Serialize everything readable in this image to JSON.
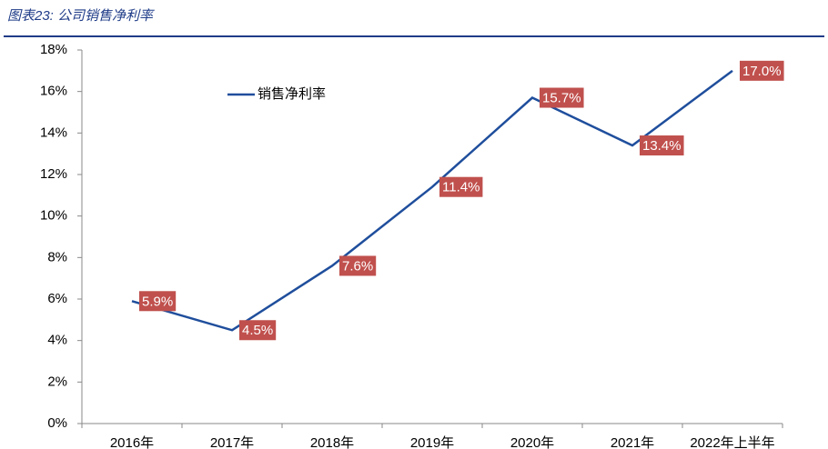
{
  "chart_data": {
    "type": "line",
    "title": "图表23: 公司销售净利率",
    "categories": [
      "2016年",
      "2017年",
      "2018年",
      "2019年",
      "2020年",
      "2021年",
      "2022年上半年"
    ],
    "series": [
      {
        "name": "销售净利率",
        "color": "#1f4e9c",
        "values": [
          5.9,
          4.5,
          7.6,
          11.4,
          15.7,
          13.4,
          17.0
        ],
        "value_labels": [
          "5.9%",
          "4.5%",
          "7.6%",
          "11.4%",
          "15.7%",
          "13.4%",
          "17.0%"
        ]
      }
    ],
    "label_color": "#c0504d",
    "ylim": [
      0,
      18
    ],
    "yticks": [
      {
        "value": 0,
        "label": "0%"
      },
      {
        "value": 2,
        "label": "2%"
      },
      {
        "value": 4,
        "label": "4%"
      },
      {
        "value": 6,
        "label": "6%"
      },
      {
        "value": 8,
        "label": "8%"
      },
      {
        "value": 10,
        "label": "10%"
      },
      {
        "value": 12,
        "label": "12%"
      },
      {
        "value": 14,
        "label": "14%"
      },
      {
        "value": 16,
        "label": "16%"
      },
      {
        "value": 18,
        "label": "18%"
      }
    ],
    "grid": false
  }
}
